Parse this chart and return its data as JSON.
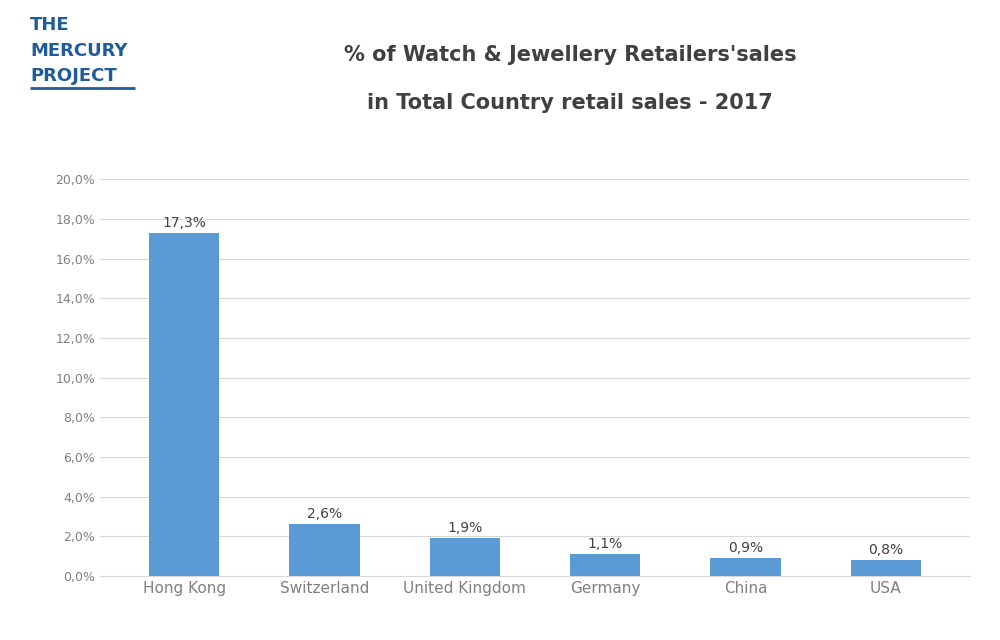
{
  "categories": [
    "Hong Kong",
    "Switzerland",
    "United Kingdom",
    "Germany",
    "China",
    "USA"
  ],
  "values": [
    17.3,
    2.6,
    1.9,
    1.1,
    0.9,
    0.8
  ],
  "labels": [
    "17,3%",
    "2,6%",
    "1,9%",
    "1,1%",
    "0,9%",
    "0,8%"
  ],
  "bar_color": "#5B9BD5",
  "title_line1": "% of Watch & Jewellery Retailers'sales",
  "title_line2": "in Total Country retail sales - 2017",
  "ylim": [
    0,
    20
  ],
  "yticks": [
    0,
    2,
    4,
    6,
    8,
    10,
    12,
    14,
    16,
    18,
    20
  ],
  "ytick_labels": [
    "0,0%",
    "2,0%",
    "4,0%",
    "6,0%",
    "8,0%",
    "10,0%",
    "12,0%",
    "14,0%",
    "16,0%",
    "18,0%",
    "20,0%"
  ],
  "logo_text_the": "THE",
  "logo_text_mercury": "MERCURY",
  "logo_text_project": "PROJECT",
  "logo_color": "#1F5C99",
  "background_color": "#FFFFFF",
  "grid_color": "#D9D9D9",
  "title_color": "#404040",
  "label_color": "#404040",
  "tick_color": "#808080",
  "bar_label_fontsize": 10,
  "title_fontsize": 15,
  "axis_label_fontsize": 9,
  "xtick_fontsize": 11,
  "logo_fontsize": 13
}
